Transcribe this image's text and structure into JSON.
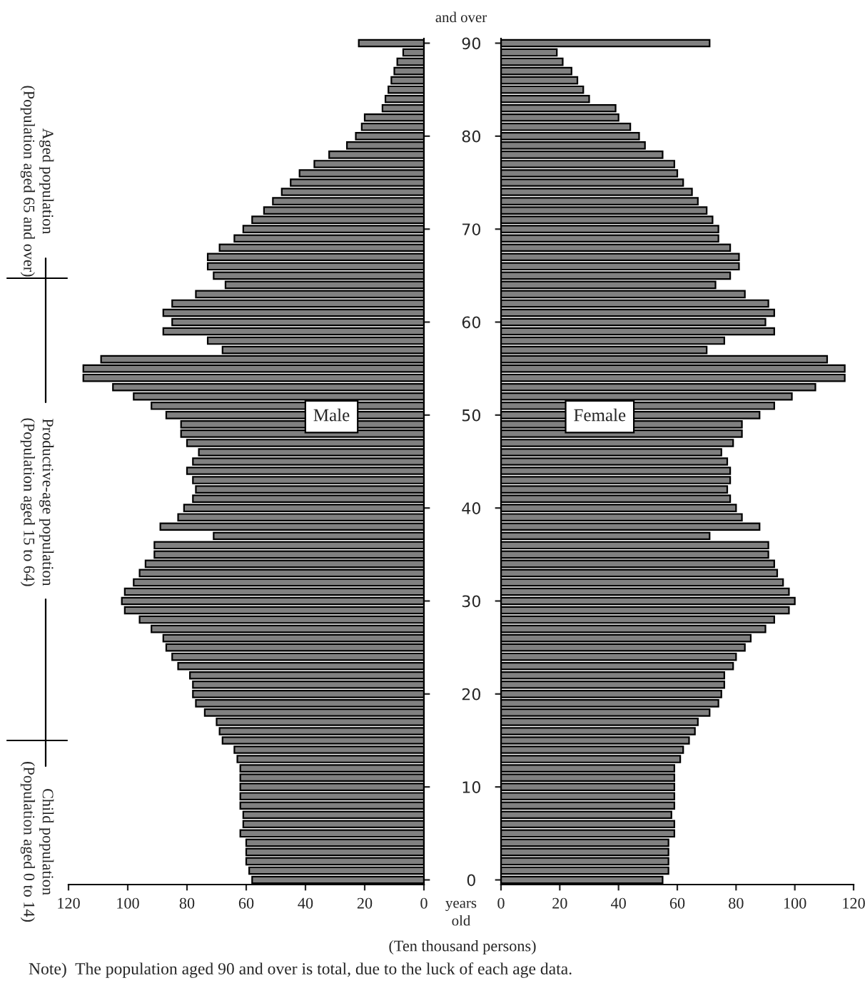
{
  "chart_data": [
    {
      "type": "bar",
      "orientation": "horizontal",
      "categories": [
        "90",
        null,
        null,
        null,
        null,
        null,
        null,
        null,
        null,
        null,
        "80",
        null,
        null,
        null,
        null,
        null,
        null,
        null,
        null,
        null,
        "70",
        null,
        null,
        null,
        null,
        null,
        null,
        null,
        null,
        null,
        "60",
        null,
        null,
        null,
        null,
        null,
        null,
        null,
        null,
        null,
        "50",
        null,
        null,
        null,
        null,
        null,
        null,
        null,
        null,
        null,
        "40",
        null,
        null,
        null,
        null,
        null,
        null,
        null,
        null,
        null,
        "30",
        null,
        null,
        null,
        null,
        null,
        null,
        null,
        null,
        null,
        "20",
        null,
        null,
        null,
        null,
        null,
        null,
        null,
        null,
        null,
        "10",
        null,
        null,
        null,
        null,
        null,
        null,
        null,
        null,
        null,
        "0"
      ],
      "series": [
        {
          "name": "Male",
          "color": "#808080",
          "values": [
            22,
            7,
            9,
            10,
            11,
            12,
            13,
            14,
            20,
            21,
            23,
            26,
            32,
            37,
            42,
            45,
            48,
            51,
            54,
            58,
            61,
            64,
            69,
            73,
            73,
            71,
            67,
            77,
            85,
            88,
            85,
            88,
            73,
            68,
            109,
            115,
            115,
            105,
            98,
            92,
            87,
            82,
            82,
            80,
            76,
            78,
            80,
            78,
            77,
            78,
            81,
            83,
            89,
            71,
            91,
            91,
            94,
            96,
            98,
            101,
            102,
            101,
            96,
            92,
            88,
            87,
            85,
            83,
            79,
            78,
            78,
            77,
            74,
            70,
            69,
            68,
            64,
            63,
            62,
            62,
            62,
            62,
            62,
            61,
            61,
            62,
            60,
            60,
            60,
            59,
            58
          ]
        }
      ],
      "xlim": [
        120,
        0
      ],
      "xticks": [
        120,
        100,
        80,
        60,
        40,
        20,
        0
      ],
      "tick_labels": "x",
      "annotations": [
        "Aged population\n(Population aged 65 and over)",
        "Productive-age population\n(Population aged 15 to 64)",
        "Child population\n(Population aged 0 to 14)"
      ]
    },
    {
      "type": "bar",
      "orientation": "horizontal",
      "categories": [
        "90",
        null,
        null,
        null,
        null,
        null,
        null,
        null,
        null,
        null,
        "80",
        null,
        null,
        null,
        null,
        null,
        null,
        null,
        null,
        null,
        "70",
        null,
        null,
        null,
        null,
        null,
        null,
        null,
        null,
        null,
        "60",
        null,
        null,
        null,
        null,
        null,
        null,
        null,
        null,
        null,
        "50",
        null,
        null,
        null,
        null,
        null,
        null,
        null,
        null,
        null,
        "40",
        null,
        null,
        null,
        null,
        null,
        null,
        null,
        null,
        null,
        "30",
        null,
        null,
        null,
        null,
        null,
        null,
        null,
        null,
        null,
        "20",
        null,
        null,
        null,
        null,
        null,
        null,
        null,
        null,
        null,
        "10",
        null,
        null,
        null,
        null,
        null,
        null,
        null,
        null,
        null,
        "0"
      ],
      "series": [
        {
          "name": "Female",
          "color": "#808080",
          "values": [
            71,
            19,
            21,
            24,
            26,
            28,
            30,
            39,
            40,
            44,
            47,
            49,
            55,
            59,
            60,
            62,
            65,
            67,
            70,
            72,
            74,
            74,
            78,
            81,
            81,
            78,
            73,
            83,
            91,
            93,
            90,
            93,
            76,
            70,
            111,
            117,
            117,
            107,
            99,
            93,
            88,
            82,
            82,
            79,
            75,
            77,
            78,
            78,
            77,
            78,
            80,
            82,
            88,
            71,
            91,
            91,
            93,
            94,
            96,
            98,
            100,
            98,
            93,
            90,
            85,
            83,
            80,
            79,
            76,
            76,
            75,
            74,
            71,
            67,
            66,
            64,
            62,
            61,
            59,
            59,
            59,
            59,
            59,
            58,
            59,
            59,
            57,
            57,
            57,
            57,
            55
          ]
        }
      ],
      "xlim": [
        0,
        120
      ],
      "xticks": [
        0,
        20,
        40,
        60,
        80,
        100,
        120
      ],
      "annotations": [
        "and over",
        "years\nold",
        "(Ten thousand persons)",
        "Note)  The population aged 90 and over is total, due to the luck of each age data."
      ]
    }
  ]
}
